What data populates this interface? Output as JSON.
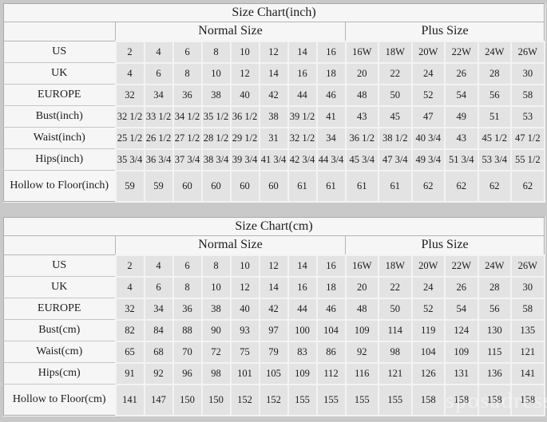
{
  "page": {
    "watermark": "sposadresses",
    "colors": {
      "page_background": "#c9c9c9",
      "table_background": "#f6f6f6",
      "data_cell_background": "#e3e3e3",
      "grid_line": "#b5b5b5",
      "text": "#1c1c1c"
    }
  },
  "chart_data": [
    {
      "type": "table",
      "title": "Size Chart(inch)",
      "column_groups": [
        {
          "label": "Normal Size",
          "span": 8
        },
        {
          "label": "Plus Size",
          "span": 6
        }
      ],
      "rows": [
        {
          "label": "US",
          "values": [
            "2",
            "4",
            "6",
            "8",
            "10",
            "12",
            "14",
            "16",
            "16W",
            "18W",
            "20W",
            "22W",
            "24W",
            "26W"
          ]
        },
        {
          "label": "UK",
          "values": [
            "4",
            "6",
            "8",
            "10",
            "12",
            "14",
            "16",
            "18",
            "20",
            "22",
            "24",
            "26",
            "28",
            "30"
          ]
        },
        {
          "label": "EUROPE",
          "values": [
            "32",
            "34",
            "36",
            "38",
            "40",
            "42",
            "44",
            "46",
            "48",
            "50",
            "52",
            "54",
            "56",
            "58"
          ]
        },
        {
          "label": "Bust(inch)",
          "values": [
            "32 1/2",
            "33 1/2",
            "34 1/2",
            "35 1/2",
            "36 1/2",
            "38",
            "39 1/2",
            "41",
            "43",
            "45",
            "47",
            "49",
            "51",
            "53"
          ]
        },
        {
          "label": "Waist(inch)",
          "values": [
            "25 1/2",
            "26 1/2",
            "27 1/2",
            "28 1/2",
            "29 1/2",
            "31",
            "32 1/2",
            "34",
            "36 1/2",
            "38 1/2",
            "40 3/4",
            "43",
            "45 1/2",
            "47 1/2"
          ]
        },
        {
          "label": "Hips(inch)",
          "values": [
            "35 3/4",
            "36 3/4",
            "37 3/4",
            "38 3/4",
            "39 3/4",
            "41 3/4",
            "42 3/4",
            "44 3/4",
            "45 3/4",
            "47 3/4",
            "49 3/4",
            "51 3/4",
            "53 3/4",
            "55 1/2"
          ]
        },
        {
          "label": "Hollow to Floor(inch)",
          "values": [
            "59",
            "59",
            "60",
            "60",
            "60",
            "60",
            "61",
            "61",
            "61",
            "61",
            "62",
            "62",
            "62",
            "62"
          ]
        }
      ]
    },
    {
      "type": "table",
      "title": "Size Chart(cm)",
      "column_groups": [
        {
          "label": "Normal Size",
          "span": 8
        },
        {
          "label": "Plus Size",
          "span": 6
        }
      ],
      "rows": [
        {
          "label": "US",
          "values": [
            "2",
            "4",
            "6",
            "8",
            "10",
            "12",
            "14",
            "16",
            "16W",
            "18W",
            "20W",
            "22W",
            "24W",
            "26W"
          ]
        },
        {
          "label": "UK",
          "values": [
            "4",
            "6",
            "8",
            "10",
            "12",
            "14",
            "16",
            "18",
            "20",
            "22",
            "24",
            "26",
            "28",
            "30"
          ]
        },
        {
          "label": "EUROPE",
          "values": [
            "32",
            "34",
            "36",
            "38",
            "40",
            "42",
            "44",
            "46",
            "48",
            "50",
            "52",
            "54",
            "56",
            "58"
          ]
        },
        {
          "label": "Bust(cm)",
          "values": [
            "82",
            "84",
            "88",
            "90",
            "93",
            "97",
            "100",
            "104",
            "109",
            "114",
            "119",
            "124",
            "130",
            "135"
          ]
        },
        {
          "label": "Waist(cm)",
          "values": [
            "65",
            "68",
            "70",
            "72",
            "75",
            "79",
            "83",
            "86",
            "92",
            "98",
            "104",
            "109",
            "115",
            "121"
          ]
        },
        {
          "label": "Hips(cm)",
          "values": [
            "91",
            "92",
            "96",
            "98",
            "101",
            "105",
            "109",
            "112",
            "116",
            "121",
            "126",
            "131",
            "136",
            "141"
          ]
        },
        {
          "label": "Hollow to Floor(cm)",
          "values": [
            "141",
            "147",
            "150",
            "150",
            "152",
            "152",
            "155",
            "155",
            "155",
            "155",
            "158",
            "158",
            "158",
            "158"
          ]
        }
      ]
    }
  ]
}
